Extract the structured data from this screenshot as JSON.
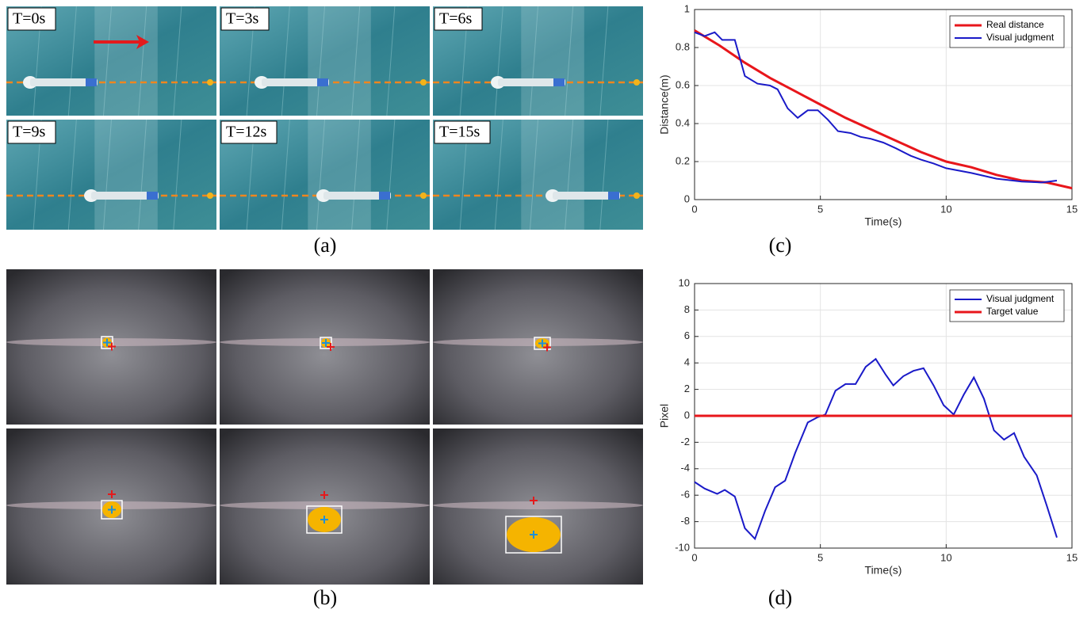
{
  "panel_a": {
    "caption": "(a)",
    "frames": [
      {
        "label": "T=0s"
      },
      {
        "label": "T=3s"
      },
      {
        "label": "T=6s"
      },
      {
        "label": "T=9s"
      },
      {
        "label": "T=12s"
      },
      {
        "label": "T=15s"
      }
    ]
  },
  "panel_b": {
    "caption": "(b)"
  },
  "chart_data": [
    {
      "type": "line",
      "caption": "(c)",
      "xlabel": "Time(s)",
      "ylabel": "Distance(m)",
      "xlim": [
        0,
        15
      ],
      "ylim": [
        0,
        1
      ],
      "xticks": [
        0,
        5,
        10,
        15
      ],
      "yticks": [
        0,
        0.2,
        0.4,
        0.6,
        0.8,
        1
      ],
      "grid": true,
      "legend": "upper right",
      "series": [
        {
          "name": "Real distance",
          "color": "#e8161b",
          "x": [
            0,
            1,
            2,
            3,
            4,
            5,
            6,
            7,
            8,
            9,
            10,
            11,
            12,
            13,
            14,
            15
          ],
          "values": [
            0.89,
            0.81,
            0.72,
            0.64,
            0.57,
            0.5,
            0.43,
            0.37,
            0.31,
            0.25,
            0.2,
            0.17,
            0.13,
            0.1,
            0.09,
            0.06
          ]
        },
        {
          "name": "Visual judgment",
          "color": "#1a1ac8",
          "x": [
            0,
            0.4,
            0.8,
            1.1,
            1.6,
            2.0,
            2.5,
            3.0,
            3.3,
            3.7,
            4.1,
            4.5,
            4.9,
            5.3,
            5.7,
            6.2,
            6.6,
            7.0,
            7.5,
            8.0,
            8.6,
            9.0,
            9.5,
            10.0,
            11.0,
            12.0,
            13.0,
            13.8,
            14.4
          ],
          "values": [
            0.88,
            0.86,
            0.88,
            0.84,
            0.84,
            0.65,
            0.61,
            0.6,
            0.58,
            0.48,
            0.43,
            0.47,
            0.47,
            0.42,
            0.36,
            0.35,
            0.33,
            0.32,
            0.3,
            0.27,
            0.23,
            0.21,
            0.19,
            0.165,
            0.14,
            0.11,
            0.095,
            0.09,
            0.1
          ]
        }
      ]
    },
    {
      "type": "line",
      "caption": "(d)",
      "xlabel": "Time(s)",
      "ylabel": "Pixel",
      "xlim": [
        0,
        15
      ],
      "ylim": [
        -10,
        10
      ],
      "xticks": [
        0,
        5,
        10,
        15
      ],
      "yticks": [
        -10,
        -8,
        -6,
        -4,
        -2,
        0,
        2,
        4,
        6,
        8,
        10
      ],
      "grid": true,
      "legend": "upper right",
      "series": [
        {
          "name": "Visual judgment",
          "color": "#1a1ac8",
          "x": [
            0,
            0.4,
            0.9,
            1.2,
            1.6,
            2.0,
            2.4,
            2.8,
            3.2,
            3.6,
            4.0,
            4.5,
            4.9,
            5.2,
            5.6,
            6.0,
            6.4,
            6.8,
            7.2,
            7.6,
            7.9,
            8.3,
            8.7,
            9.1,
            9.5,
            9.9,
            10.3,
            10.7,
            11.1,
            11.5,
            11.9,
            12.3,
            12.7,
            13.1,
            13.6,
            14.0,
            14.4
          ],
          "values": [
            -5,
            -5.5,
            -5.9,
            -5.6,
            -6.1,
            -8.5,
            -9.3,
            -7.2,
            -5.4,
            -4.9,
            -2.8,
            -0.5,
            -0.1,
            0.1,
            1.9,
            2.4,
            2.4,
            3.7,
            4.3,
            3.1,
            2.3,
            3.0,
            3.4,
            3.6,
            2.3,
            0.8,
            0.1,
            1.6,
            2.9,
            1.3,
            -1.1,
            -1.8,
            -1.3,
            -3.1,
            -4.5,
            -6.8,
            -9.2
          ]
        },
        {
          "name": "Target value",
          "color": "#e8161b",
          "x": [
            0,
            15
          ],
          "values": [
            0,
            0
          ]
        }
      ]
    }
  ]
}
